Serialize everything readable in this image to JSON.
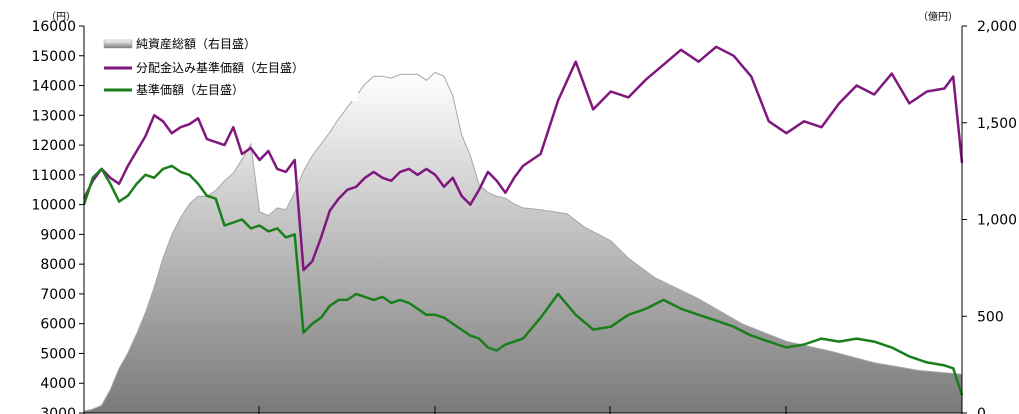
{
  "chart_data": {
    "type": "line",
    "title": "",
    "left_axis": {
      "unit": "（円）",
      "range": [
        3000,
        16000
      ],
      "ticks": [
        "3000",
        "4000",
        "5000",
        "6000",
        "7000",
        "8000",
        "9000",
        "10000",
        "11000",
        "12000",
        "13000",
        "14000",
        "15000",
        "16000"
      ]
    },
    "right_axis": {
      "unit": "（億円）",
      "range": [
        0,
        2000
      ],
      "ticks": [
        "0",
        "500",
        "1,000",
        "1,500",
        "2,000"
      ]
    },
    "grid": false,
    "legend_position": "top-left",
    "series": [
      {
        "name": "純資産総額（右目盛）",
        "type": "area",
        "axis": "right",
        "color": "#a6a6a6",
        "x": [
          0,
          0.01,
          0.02,
          0.03,
          0.04,
          0.05,
          0.06,
          0.07,
          0.08,
          0.09,
          0.1,
          0.11,
          0.12,
          0.13,
          0.14,
          0.15,
          0.16,
          0.17,
          0.18,
          0.19,
          0.2,
          0.21,
          0.22,
          0.23,
          0.24,
          0.25,
          0.26,
          0.27,
          0.28,
          0.29,
          0.3,
          0.31,
          0.32,
          0.33,
          0.34,
          0.35,
          0.36,
          0.37,
          0.38,
          0.39,
          0.4,
          0.41,
          0.42,
          0.43,
          0.44,
          0.45,
          0.46,
          0.47,
          0.48,
          0.49,
          0.5,
          0.52,
          0.55,
          0.57,
          0.6,
          0.62,
          0.65,
          0.7,
          0.75,
          0.8,
          0.85,
          0.9,
          0.95,
          1.0
        ],
        "values": [
          10,
          20,
          40,
          120,
          230,
          310,
          410,
          520,
          650,
          800,
          920,
          1010,
          1080,
          1120,
          1120,
          1150,
          1200,
          1240,
          1310,
          1390,
          1040,
          1020,
          1060,
          1050,
          1140,
          1250,
          1330,
          1390,
          1450,
          1520,
          1580,
          1640,
          1700,
          1740,
          1740,
          1730,
          1750,
          1750,
          1750,
          1720,
          1760,
          1740,
          1640,
          1440,
          1330,
          1180,
          1140,
          1120,
          1110,
          1080,
          1060,
          1050,
          1030,
          960,
          890,
          800,
          700,
          590,
          460,
          370,
          320,
          260,
          220,
          200
        ]
      },
      {
        "name": "分配金込み基準価額（左目盛）",
        "type": "line",
        "axis": "left",
        "color": "#7f177f",
        "x": [
          0,
          0.01,
          0.02,
          0.03,
          0.04,
          0.05,
          0.06,
          0.07,
          0.08,
          0.09,
          0.1,
          0.11,
          0.12,
          0.13,
          0.14,
          0.15,
          0.16,
          0.17,
          0.18,
          0.19,
          0.2,
          0.21,
          0.22,
          0.23,
          0.24,
          0.25,
          0.26,
          0.27,
          0.28,
          0.29,
          0.3,
          0.31,
          0.32,
          0.33,
          0.34,
          0.35,
          0.36,
          0.37,
          0.38,
          0.39,
          0.4,
          0.41,
          0.42,
          0.43,
          0.44,
          0.45,
          0.46,
          0.47,
          0.48,
          0.49,
          0.5,
          0.52,
          0.54,
          0.56,
          0.58,
          0.6,
          0.62,
          0.64,
          0.66,
          0.68,
          0.7,
          0.72,
          0.74,
          0.76,
          0.78,
          0.8,
          0.82,
          0.84,
          0.86,
          0.88,
          0.9,
          0.92,
          0.94,
          0.96,
          0.98,
          0.99,
          1.0
        ],
        "values": [
          10200,
          10800,
          11200,
          10900,
          10700,
          11300,
          11800,
          12300,
          13000,
          12800,
          12400,
          12600,
          12700,
          12900,
          12200,
          12100,
          12000,
          12600,
          11700,
          11900,
          11500,
          11800,
          11200,
          11100,
          11500,
          7800,
          8100,
          8900,
          9800,
          10200,
          10500,
          10600,
          10900,
          11100,
          10900,
          10800,
          11100,
          11200,
          11000,
          11200,
          11000,
          10600,
          10900,
          10300,
          10000,
          10500,
          11100,
          10800,
          10400,
          10900,
          11300,
          11700,
          13500,
          14800,
          13200,
          13800,
          13600,
          14200,
          14700,
          15200,
          14800,
          15300,
          15000,
          14300,
          12800,
          12400,
          12800,
          12600,
          13400,
          14000,
          13700,
          14400,
          13400,
          13800,
          13900,
          14300,
          11400
        ]
      },
      {
        "name": "基準価額（左目盛）",
        "type": "line",
        "axis": "left",
        "color": "#1a7f1a",
        "x": [
          0,
          0.01,
          0.02,
          0.03,
          0.04,
          0.05,
          0.06,
          0.07,
          0.08,
          0.09,
          0.1,
          0.11,
          0.12,
          0.13,
          0.14,
          0.15,
          0.16,
          0.17,
          0.18,
          0.19,
          0.2,
          0.21,
          0.22,
          0.23,
          0.24,
          0.25,
          0.26,
          0.27,
          0.28,
          0.29,
          0.3,
          0.31,
          0.32,
          0.33,
          0.34,
          0.35,
          0.36,
          0.37,
          0.38,
          0.39,
          0.4,
          0.41,
          0.42,
          0.43,
          0.44,
          0.45,
          0.46,
          0.47,
          0.48,
          0.49,
          0.5,
          0.52,
          0.54,
          0.56,
          0.58,
          0.6,
          0.62,
          0.64,
          0.66,
          0.68,
          0.7,
          0.72,
          0.74,
          0.76,
          0.78,
          0.8,
          0.82,
          0.84,
          0.86,
          0.88,
          0.9,
          0.92,
          0.94,
          0.96,
          0.98,
          0.99,
          1.0
        ],
        "values": [
          10000,
          10900,
          11200,
          10700,
          10100,
          10300,
          10700,
          11000,
          10900,
          11200,
          11300,
          11100,
          11000,
          10700,
          10300,
          10200,
          9300,
          9400,
          9500,
          9200,
          9300,
          9100,
          9200,
          8900,
          9000,
          5700,
          6000,
          6200,
          6600,
          6800,
          6800,
          7000,
          6900,
          6800,
          6900,
          6700,
          6800,
          6700,
          6500,
          6300,
          6300,
          6200,
          6000,
          5800,
          5600,
          5500,
          5200,
          5100,
          5300,
          5400,
          5500,
          6200,
          7000,
          6300,
          5800,
          5900,
          6300,
          6500,
          6800,
          6500,
          6300,
          6100,
          5900,
          5600,
          5400,
          5200,
          5300,
          5500,
          5400,
          5500,
          5400,
          5200,
          4900,
          4700,
          4600,
          4500,
          3600
        ]
      }
    ]
  }
}
